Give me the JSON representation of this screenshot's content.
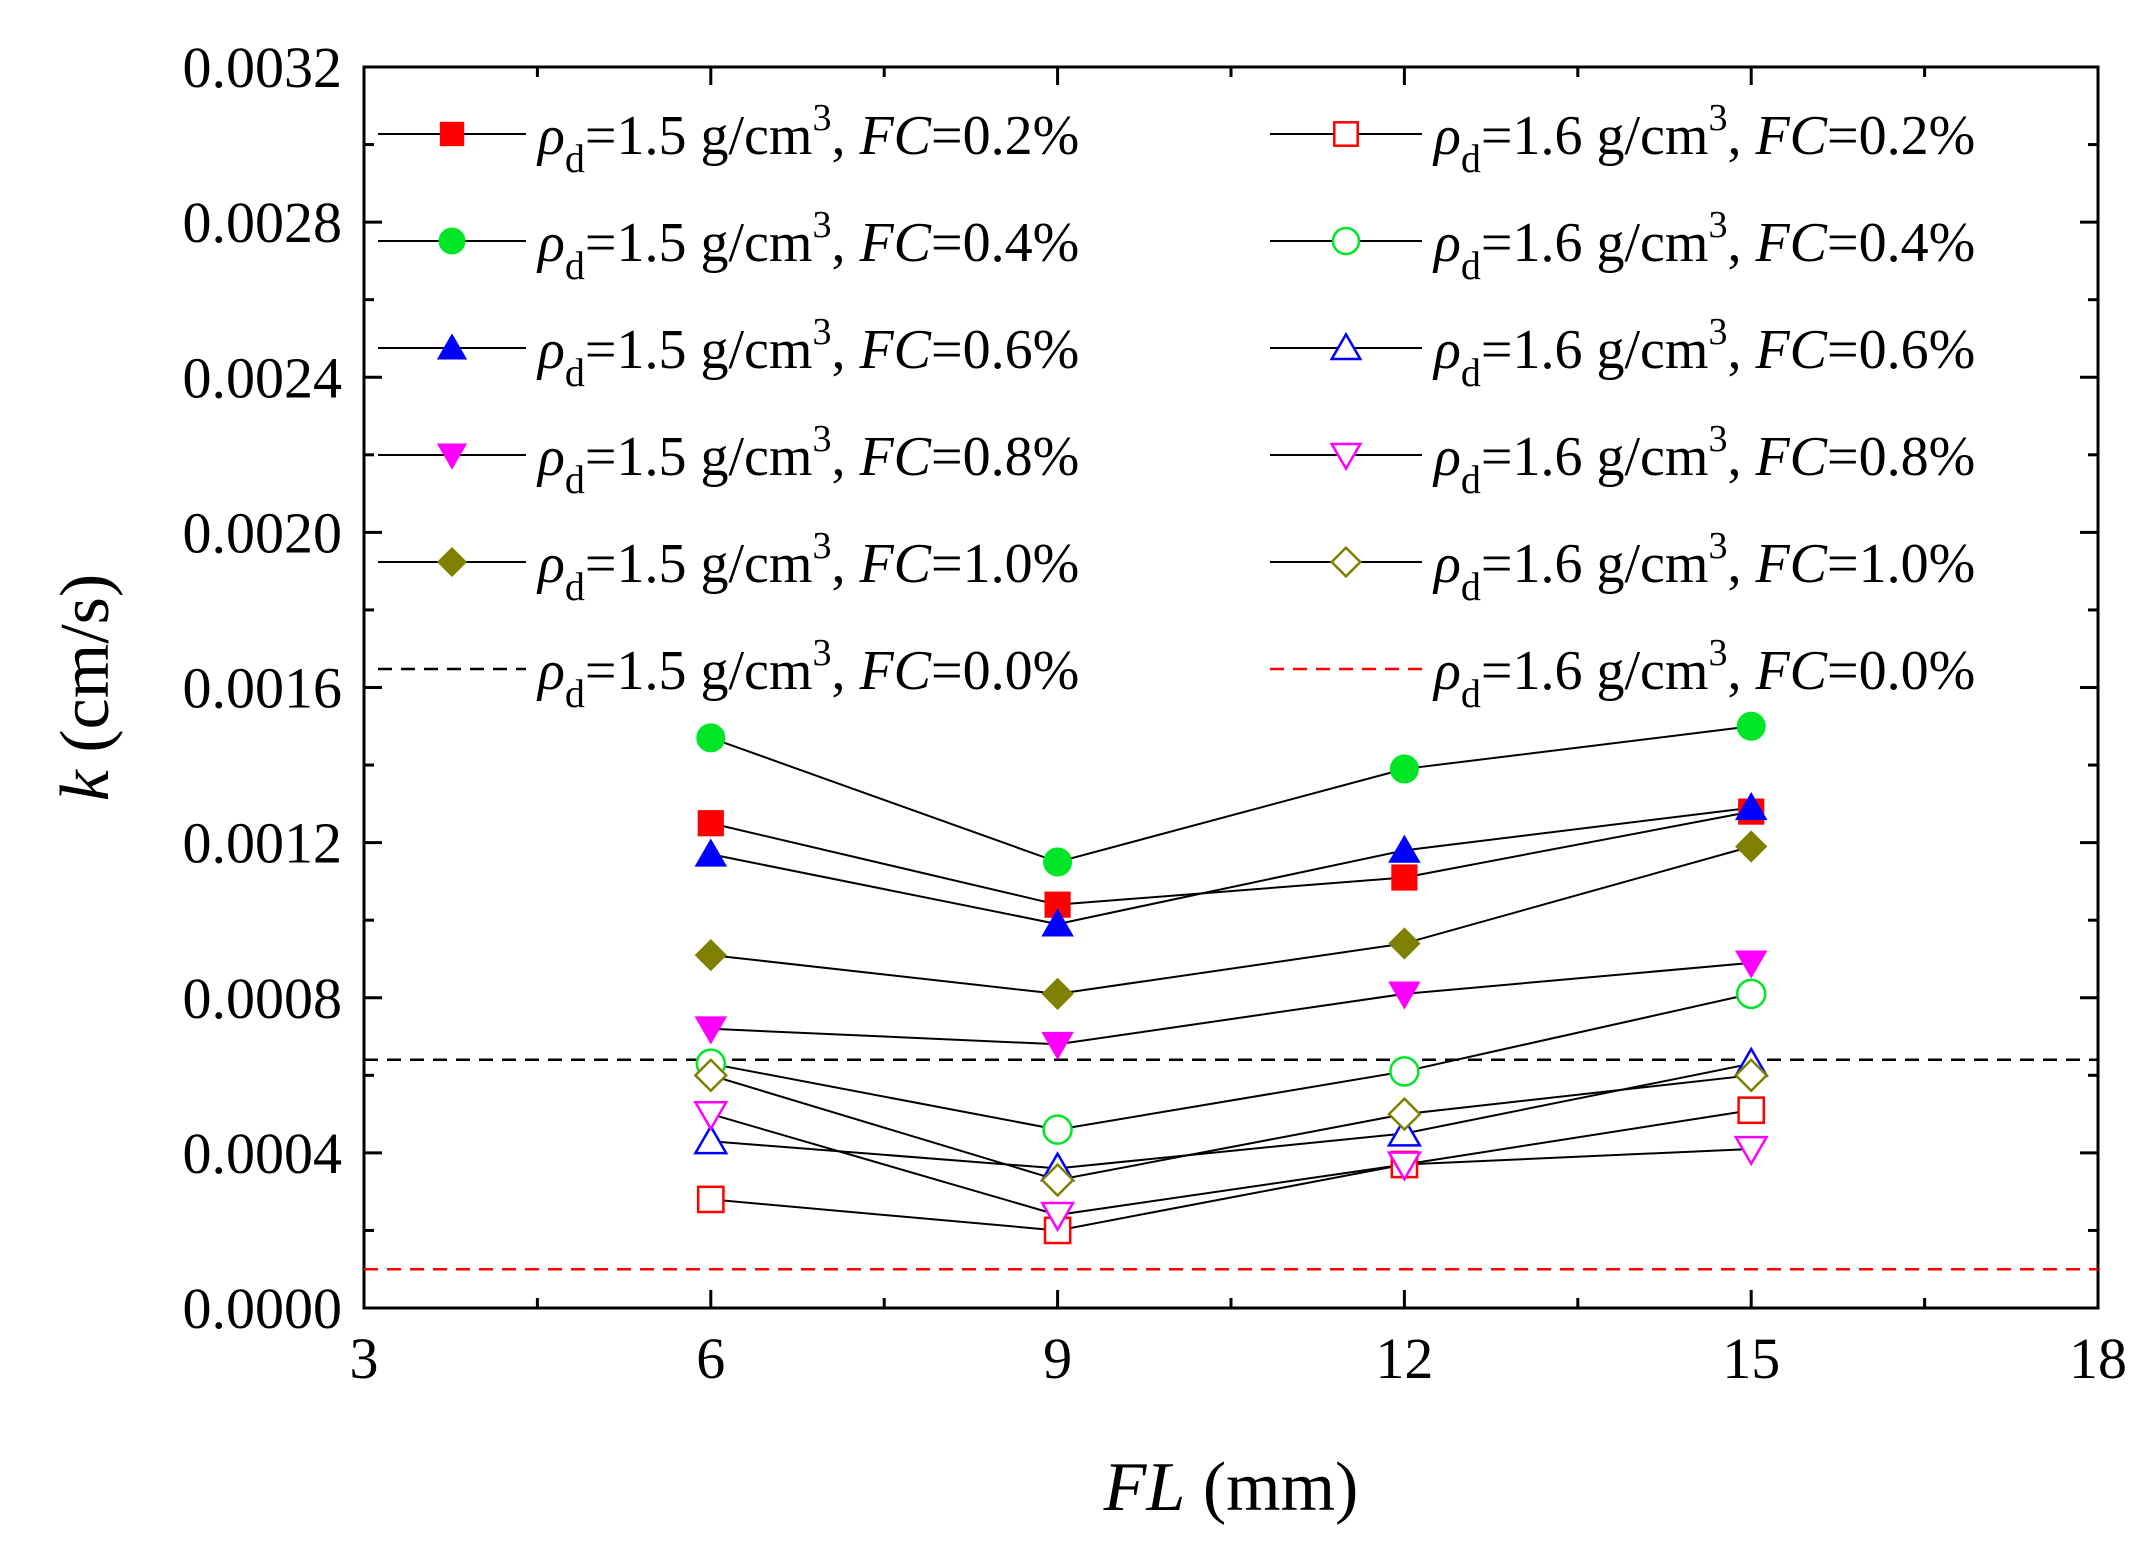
{
  "chart_data": {
    "type": "line",
    "xlabel": {
      "italic": "FL",
      "rest": " (mm)"
    },
    "ylabel": {
      "italic": "k",
      "rest": " (cm/s)"
    },
    "xlim": [
      3,
      18
    ],
    "ylim": [
      0,
      0.0032
    ],
    "xticks": [
      "3",
      "6",
      "9",
      "12",
      "15",
      "18"
    ],
    "xtick_values": [
      3,
      6,
      9,
      12,
      15,
      18
    ],
    "yticks": [
      "0.0000",
      "0.0004",
      "0.0008",
      "0.0012",
      "0.0016",
      "0.0020",
      "0.0024",
      "0.0028",
      "0.0032"
    ],
    "ytick_values": [
      0,
      0.0004,
      0.0008,
      0.0012,
      0.0016,
      0.002,
      0.0024,
      0.0028,
      0.0032
    ],
    "grid": false,
    "legend_position": "top",
    "x": [
      6,
      9,
      12,
      15
    ],
    "series": [
      {
        "name": "ρd=1.5 g/cm3, FC=0.2%",
        "rho": "1.5",
        "fc": "0.2%",
        "marker": "square",
        "filled": true,
        "color": "#ff0000",
        "values": [
          0.00125,
          0.00104,
          0.00111,
          0.00128
        ]
      },
      {
        "name": "ρd=1.5 g/cm3, FC=0.4%",
        "rho": "1.5",
        "fc": "0.4%",
        "marker": "circle",
        "filled": true,
        "color": "#00e626",
        "values": [
          0.00147,
          0.00115,
          0.00139,
          0.0015
        ]
      },
      {
        "name": "ρd=1.5 g/cm3, FC=0.6%",
        "rho": "1.5",
        "fc": "0.6%",
        "marker": "triangle-up",
        "filled": true,
        "color": "#0000ff",
        "values": [
          0.00117,
          0.00099,
          0.00118,
          0.00129
        ]
      },
      {
        "name": "ρd=1.5 g/cm3, FC=0.8%",
        "rho": "1.5",
        "fc": "0.8%",
        "marker": "triangle-down",
        "filled": true,
        "color": "#ff00ff",
        "values": [
          0.00072,
          0.00068,
          0.00081,
          0.00089
        ]
      },
      {
        "name": "ρd=1.5 g/cm3, FC=1.0%",
        "rho": "1.5",
        "fc": "1.0%",
        "marker": "diamond",
        "filled": true,
        "color": "#808000",
        "values": [
          0.00091,
          0.00081,
          0.00094,
          0.00119
        ]
      },
      {
        "name": "ρd=1.6 g/cm3, FC=0.2%",
        "rho": "1.6",
        "fc": "0.2%",
        "marker": "square",
        "filled": false,
        "color": "#ff0000",
        "values": [
          0.00028,
          0.0002,
          0.00037,
          0.00051
        ]
      },
      {
        "name": "ρd=1.6 g/cm3, FC=0.4%",
        "rho": "1.6",
        "fc": "0.4%",
        "marker": "circle",
        "filled": false,
        "color": "#00e626",
        "values": [
          0.00063,
          0.00046,
          0.00061,
          0.00081
        ]
      },
      {
        "name": "ρd=1.6 g/cm3, FC=0.6%",
        "rho": "1.6",
        "fc": "0.6%",
        "marker": "triangle-up",
        "filled": false,
        "color": "#0000ff",
        "values": [
          0.00043,
          0.00036,
          0.00045,
          0.00063
        ]
      },
      {
        "name": "ρd=1.6 g/cm3, FC=0.8%",
        "rho": "1.6",
        "fc": "0.8%",
        "marker": "triangle-down",
        "filled": false,
        "color": "#ff00ff",
        "values": [
          0.0005,
          0.00024,
          0.00037,
          0.00041
        ]
      },
      {
        "name": "ρd=1.6 g/cm3, FC=1.0%",
        "rho": "1.6",
        "fc": "1.0%",
        "marker": "diamond",
        "filled": false,
        "color": "#808000",
        "values": [
          0.0006,
          0.00033,
          0.0005,
          0.0006
        ]
      }
    ],
    "reference_lines": [
      {
        "name": "ρd=1.5 g/cm3, FC=0.0%",
        "rho": "1.5",
        "fc": "0.0%",
        "value": 0.00064,
        "color": "#000000",
        "style": "dashed"
      },
      {
        "name": "ρd=1.6 g/cm3, FC=0.0%",
        "rho": "1.6",
        "fc": "0.0%",
        "value": 0.0001,
        "color": "#ff0000",
        "style": "dashed"
      }
    ],
    "legend_text": {
      "rho_symbol": "ρ",
      "rho_sub": "d",
      "eq": "=",
      "unit": " g/cm",
      "unit_sup": "3",
      "sep": ", ",
      "fc_symbol": "FC"
    }
  }
}
